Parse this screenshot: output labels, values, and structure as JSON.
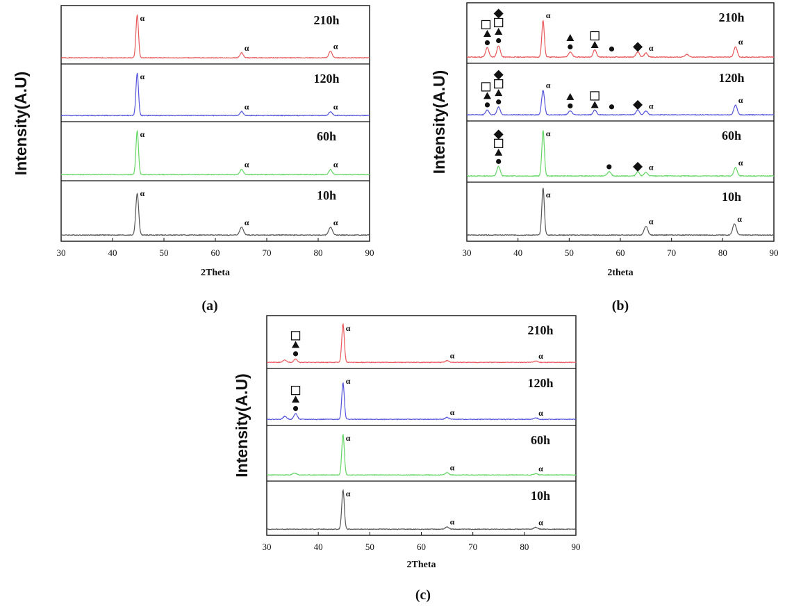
{
  "chart_data": [
    {
      "type": "line",
      "panel_label": "(a)",
      "xlabel": "2Theta",
      "ylabel": "Intensity(A.U)",
      "xlim": [
        30,
        90
      ],
      "xticks": [
        30,
        40,
        50,
        60,
        70,
        80,
        90
      ],
      "series": [
        {
          "name": "210h",
          "color": "#e8585a",
          "peaks": [
            {
              "x": 44.8,
              "h": 0.86,
              "w": 0.35
            },
            {
              "x": 65.1,
              "h": 0.1,
              "w": 0.45
            },
            {
              "x": 82.4,
              "h": 0.13,
              "w": 0.45
            }
          ],
          "annotations": [
            {
              "x": 44.8,
              "symbols": [
                "α"
              ]
            },
            {
              "x": 65.1,
              "symbols": [
                "α"
              ]
            },
            {
              "x": 82.4,
              "symbols": [
                "α"
              ]
            }
          ]
        },
        {
          "name": "120h",
          "color": "#5454dc",
          "peaks": [
            {
              "x": 44.8,
              "h": 0.86,
              "w": 0.35
            },
            {
              "x": 65.1,
              "h": 0.08,
              "w": 0.45
            },
            {
              "x": 82.4,
              "h": 0.08,
              "w": 0.45
            }
          ],
          "annotations": [
            {
              "x": 44.8,
              "symbols": [
                "α"
              ]
            },
            {
              "x": 65.1,
              "symbols": [
                "α"
              ]
            },
            {
              "x": 82.4,
              "symbols": [
                "α"
              ]
            }
          ]
        },
        {
          "name": "60h",
          "color": "#63d663",
          "peaks": [
            {
              "x": 44.8,
              "h": 0.86,
              "w": 0.35
            },
            {
              "x": 65.1,
              "h": 0.1,
              "w": 0.45
            },
            {
              "x": 82.4,
              "h": 0.1,
              "w": 0.45
            }
          ],
          "annotations": [
            {
              "x": 44.8,
              "symbols": [
                "α"
              ]
            },
            {
              "x": 65.1,
              "symbols": [
                "α"
              ]
            },
            {
              "x": 82.4,
              "symbols": [
                "α"
              ]
            }
          ]
        },
        {
          "name": "10h",
          "color": "#555555",
          "peaks": [
            {
              "x": 44.8,
              "h": 0.8,
              "w": 0.4
            },
            {
              "x": 65.1,
              "h": 0.15,
              "w": 0.5
            },
            {
              "x": 82.4,
              "h": 0.15,
              "w": 0.5
            }
          ],
          "annotations": [
            {
              "x": 44.8,
              "symbols": [
                "α"
              ]
            },
            {
              "x": 65.1,
              "symbols": [
                "α"
              ]
            },
            {
              "x": 82.4,
              "symbols": [
                "α"
              ]
            }
          ]
        }
      ]
    },
    {
      "type": "line",
      "panel_label": "(b)",
      "xlabel": "2theta",
      "ylabel": "Intensity(A.U)",
      "xlim": [
        30,
        90
      ],
      "xticks": [
        30,
        40,
        50,
        60,
        70,
        80,
        90
      ],
      "series": [
        {
          "name": "210h",
          "color": "#e8585a",
          "peaks": [
            {
              "x": 34.0,
              "h": 0.18,
              "w": 0.45
            },
            {
              "x": 36.2,
              "h": 0.22,
              "w": 0.45
            },
            {
              "x": 44.9,
              "h": 0.7,
              "w": 0.35
            },
            {
              "x": 50.2,
              "h": 0.1,
              "w": 0.5
            },
            {
              "x": 55.0,
              "h": 0.14,
              "w": 0.45
            },
            {
              "x": 63.4,
              "h": 0.1,
              "w": 0.45
            },
            {
              "x": 65.0,
              "h": 0.08,
              "w": 0.45
            },
            {
              "x": 73.0,
              "h": 0.05,
              "w": 0.5
            },
            {
              "x": 82.5,
              "h": 0.2,
              "w": 0.45
            }
          ],
          "annotations": [
            {
              "x": 34.0,
              "symbols": [
                "●",
                "▲",
                "□"
              ]
            },
            {
              "x": 36.2,
              "symbols": [
                "●",
                "▲",
                "□",
                "◆"
              ]
            },
            {
              "x": 44.9,
              "symbols": [
                "α"
              ]
            },
            {
              "x": 50.2,
              "symbols": [
                "●",
                "▲"
              ]
            },
            {
              "x": 55.0,
              "symbols": [
                "▲",
                "□"
              ]
            },
            {
              "x": 58.3,
              "symbols": [
                "●"
              ]
            },
            {
              "x": 63.4,
              "symbols": [
                "◆"
              ]
            },
            {
              "x": 65.0,
              "symbols": [
                "α"
              ]
            },
            {
              "x": 82.5,
              "symbols": [
                "α"
              ]
            }
          ]
        },
        {
          "name": "120h",
          "color": "#5454dc",
          "peaks": [
            {
              "x": 34.0,
              "h": 0.1,
              "w": 0.45
            },
            {
              "x": 36.2,
              "h": 0.16,
              "w": 0.45
            },
            {
              "x": 44.9,
              "h": 0.5,
              "w": 0.4
            },
            {
              "x": 50.2,
              "h": 0.08,
              "w": 0.5
            },
            {
              "x": 55.0,
              "h": 0.1,
              "w": 0.45
            },
            {
              "x": 63.4,
              "h": 0.1,
              "w": 0.45
            },
            {
              "x": 65.0,
              "h": 0.08,
              "w": 0.45
            },
            {
              "x": 82.5,
              "h": 0.2,
              "w": 0.45
            }
          ],
          "annotations": [
            {
              "x": 34.0,
              "symbols": [
                "●",
                "▲",
                "□"
              ]
            },
            {
              "x": 36.2,
              "symbols": [
                "●",
                "▲",
                "□",
                "◆"
              ]
            },
            {
              "x": 44.9,
              "symbols": [
                "α"
              ]
            },
            {
              "x": 50.2,
              "symbols": [
                "●",
                "▲"
              ]
            },
            {
              "x": 55.0,
              "symbols": [
                "▲",
                "□"
              ]
            },
            {
              "x": 58.3,
              "symbols": [
                "●"
              ]
            },
            {
              "x": 63.4,
              "symbols": [
                "◆"
              ]
            },
            {
              "x": 65.0,
              "symbols": [
                "α"
              ]
            },
            {
              "x": 82.5,
              "symbols": [
                "α"
              ]
            }
          ]
        },
        {
          "name": "60h",
          "color": "#63d663",
          "peaks": [
            {
              "x": 36.2,
              "h": 0.18,
              "w": 0.45
            },
            {
              "x": 44.9,
              "h": 0.86,
              "w": 0.35
            },
            {
              "x": 57.8,
              "h": 0.08,
              "w": 0.5
            },
            {
              "x": 63.4,
              "h": 0.08,
              "w": 0.45
            },
            {
              "x": 65.0,
              "h": 0.07,
              "w": 0.45
            },
            {
              "x": 82.5,
              "h": 0.16,
              "w": 0.45
            }
          ],
          "annotations": [
            {
              "x": 36.2,
              "symbols": [
                "●",
                "▲",
                "□",
                "◆"
              ]
            },
            {
              "x": 44.9,
              "symbols": [
                "α"
              ]
            },
            {
              "x": 57.8,
              "symbols": [
                "●"
              ]
            },
            {
              "x": 63.4,
              "symbols": [
                "◆"
              ]
            },
            {
              "x": 65.0,
              "symbols": [
                "α"
              ]
            },
            {
              "x": 82.5,
              "symbols": [
                "α"
              ]
            }
          ]
        },
        {
          "name": "10h",
          "color": "#555555",
          "peaks": [
            {
              "x": 44.9,
              "h": 0.93,
              "w": 0.35
            },
            {
              "x": 65.0,
              "h": 0.17,
              "w": 0.5
            },
            {
              "x": 82.3,
              "h": 0.22,
              "w": 0.5
            }
          ],
          "annotations": [
            {
              "x": 44.9,
              "symbols": [
                "α"
              ]
            },
            {
              "x": 65.0,
              "symbols": [
                "α"
              ]
            },
            {
              "x": 82.3,
              "symbols": [
                "α"
              ]
            }
          ]
        }
      ]
    },
    {
      "type": "line",
      "panel_label": "(c)",
      "xlabel": "2Theta",
      "ylabel": "Intensity(A.U)",
      "xlim": [
        30,
        90
      ],
      "xticks": [
        30,
        40,
        50,
        60,
        70,
        80,
        90
      ],
      "series": [
        {
          "name": "210h",
          "color": "#e8585a",
          "peaks": [
            {
              "x": 33.5,
              "h": 0.05,
              "w": 0.5
            },
            {
              "x": 35.6,
              "h": 0.08,
              "w": 0.45
            },
            {
              "x": 44.8,
              "h": 0.86,
              "w": 0.35
            },
            {
              "x": 65.0,
              "h": 0.04,
              "w": 0.5
            },
            {
              "x": 82.2,
              "h": 0.03,
              "w": 0.5
            }
          ],
          "annotations": [
            {
              "x": 35.6,
              "symbols": [
                "●",
                "▲",
                "□"
              ]
            },
            {
              "x": 44.8,
              "symbols": [
                "α"
              ]
            },
            {
              "x": 65.0,
              "symbols": [
                "α"
              ]
            },
            {
              "x": 82.2,
              "symbols": [
                "α"
              ]
            }
          ]
        },
        {
          "name": "120h",
          "color": "#5454dc",
          "peaks": [
            {
              "x": 33.5,
              "h": 0.06,
              "w": 0.5
            },
            {
              "x": 35.6,
              "h": 0.12,
              "w": 0.45
            },
            {
              "x": 44.8,
              "h": 0.75,
              "w": 0.35
            },
            {
              "x": 65.0,
              "h": 0.04,
              "w": 0.5
            },
            {
              "x": 82.2,
              "h": 0.03,
              "w": 0.5
            }
          ],
          "annotations": [
            {
              "x": 35.6,
              "symbols": [
                "●",
                "▲",
                "□"
              ]
            },
            {
              "x": 44.8,
              "symbols": [
                "α"
              ]
            },
            {
              "x": 65.0,
              "symbols": [
                "α"
              ]
            },
            {
              "x": 82.2,
              "symbols": [
                "α"
              ]
            }
          ]
        },
        {
          "name": "60h",
          "color": "#63d663",
          "peaks": [
            {
              "x": 35.4,
              "h": 0.04,
              "w": 0.5
            },
            {
              "x": 44.8,
              "h": 0.86,
              "w": 0.35
            },
            {
              "x": 65.0,
              "h": 0.05,
              "w": 0.5
            },
            {
              "x": 82.2,
              "h": 0.03,
              "w": 0.5
            }
          ],
          "annotations": [
            {
              "x": 44.8,
              "symbols": [
                "α"
              ]
            },
            {
              "x": 65.0,
              "symbols": [
                "α"
              ]
            },
            {
              "x": 82.2,
              "symbols": [
                "α"
              ]
            }
          ]
        },
        {
          "name": "10h",
          "color": "#555555",
          "peaks": [
            {
              "x": 44.8,
              "h": 0.86,
              "w": 0.35
            },
            {
              "x": 65.0,
              "h": 0.05,
              "w": 0.5
            },
            {
              "x": 82.2,
              "h": 0.04,
              "w": 0.5
            }
          ],
          "annotations": [
            {
              "x": 44.8,
              "symbols": [
                "α"
              ]
            },
            {
              "x": 65.0,
              "symbols": [
                "α"
              ]
            },
            {
              "x": 82.2,
              "symbols": [
                "α"
              ]
            }
          ]
        }
      ]
    }
  ]
}
